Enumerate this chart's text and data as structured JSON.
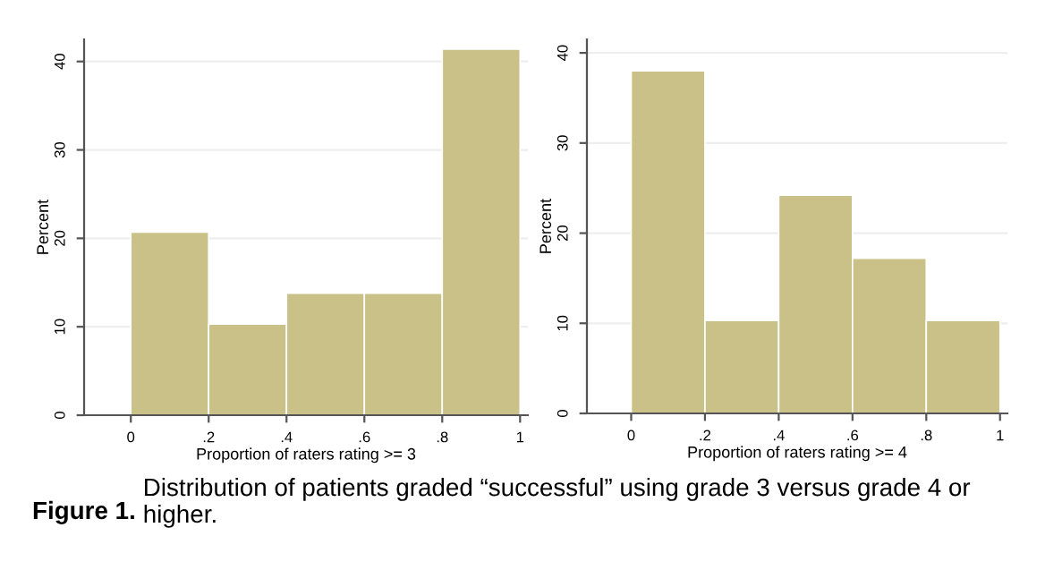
{
  "chart_data": [
    {
      "type": "histogram",
      "xlabel": "Proportion of raters rating >= 3",
      "ylabel": "Percent",
      "bins": [
        0,
        0.2,
        0.4,
        0.6,
        0.8,
        1.0
      ],
      "values": [
        20.7,
        10.3,
        13.8,
        13.8,
        41.4
      ],
      "color": "#c9c188",
      "xlim": [
        -0.12,
        1.02
      ],
      "ylim": [
        0,
        42.5
      ],
      "xticks": [
        0,
        {
          "value": 0.2,
          "label": ".2"
        },
        {
          "value": 0.4,
          "label": ".4"
        },
        {
          "value": 0.6,
          "label": ".6"
        },
        {
          "value": 0.8,
          "label": ".8"
        },
        1
      ],
      "yticks": [
        0,
        10,
        20,
        30,
        40
      ],
      "grid": "y",
      "annotations": [
        "Figure 1.",
        "Distribution of patients graded “successful” using grade 3 versus grade 4 or higher."
      ]
    },
    {
      "type": "histogram",
      "xlabel": "Proportion of raters rating >= 4",
      "ylabel": "Percent",
      "bins": [
        0,
        0.2,
        0.4,
        0.6,
        0.8,
        1.0
      ],
      "values": [
        38.0,
        10.3,
        24.2,
        17.2,
        10.3
      ],
      "color": "#c9c188",
      "xlim": [
        -0.12,
        1.02
      ],
      "ylim": [
        0,
        41.5
      ],
      "xticks": [
        0,
        {
          "value": 0.2,
          "label": ".2"
        },
        {
          "value": 0.4,
          "label": ".4"
        },
        {
          "value": 0.6,
          "label": ".6"
        },
        {
          "value": 0.8,
          "label": ".8"
        },
        1
      ],
      "yticks": [
        0,
        10,
        20,
        30,
        40
      ],
      "grid": "y"
    }
  ]
}
